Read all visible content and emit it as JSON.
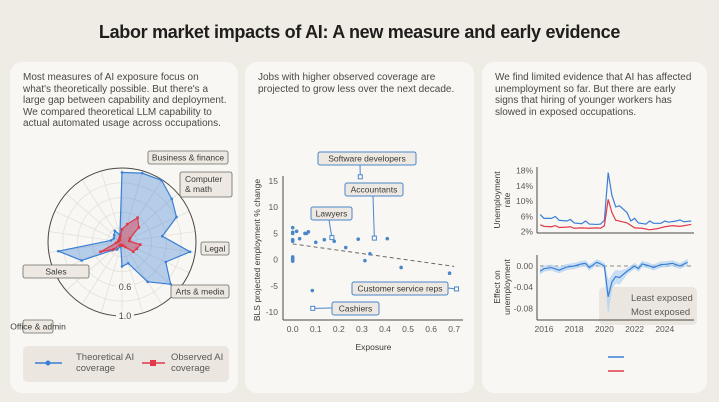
{
  "title": "Labor market impacts of AI: A new measure and early evidence",
  "panels": [
    {
      "text": "Most measures of AI exposure focus on what's theoretically possible. But there's a large gap between capability and deployment. We compared theoretical LLM capability to actual automated usage across occupations."
    },
    {
      "text": "Jobs with higher observed coverage are projected to grow less over the next decade."
    },
    {
      "text": "We find limited evidence that AI has affected unemployment so far. But there are early signs that hiring of younger workers has slowed in exposed occupations."
    }
  ],
  "chart_data": [
    {
      "type": "radar",
      "rlim": [
        0,
        1
      ],
      "ring_labels": [
        "0.6",
        "1.0"
      ],
      "category_labels": [
        "Business & finance",
        "Computer & math",
        "Legal",
        "Arts & media",
        "Sales",
        "Office & admin"
      ],
      "series": [
        {
          "name": "Theoretical AI coverage",
          "color": "#3a7fd5",
          "values": [
            0.94,
            0.97,
            0.99,
            0.89,
            0.81,
            0.55,
            0.93,
            0.65,
            0.87,
            0.64,
            0.3,
            0.33,
            0.06,
            0.12,
            0.17,
            0.6,
            0.87,
            0.15,
            0.12,
            0.14,
            0.18,
            0.1
          ]
        },
        {
          "name": "Observed AI coverage",
          "color": "#e0394a",
          "values": [
            0.17,
            0.25,
            0.39,
            0.3,
            0.12,
            0.1,
            0.25,
            0.22,
            0.2,
            0.08,
            0.05,
            0.05,
            0.04,
            0.05,
            0.15,
            0.32,
            0.08,
            0.05,
            0.05,
            0.04,
            0.06,
            0.08
          ]
        }
      ],
      "legend": [
        "Theoretical AI coverage",
        "Observed AI coverage"
      ]
    },
    {
      "type": "scatter",
      "xlabel": "Exposure",
      "ylabel": "BLS projected employment % change",
      "xlim": [
        0,
        0.7
      ],
      "ylim": [
        -10,
        15
      ],
      "xticks": [
        "0.0",
        "0.1",
        "0.2",
        "0.3",
        "0.4",
        "0.5",
        "0.6",
        "0.7"
      ],
      "yticks": [
        "15",
        "10",
        "5",
        "0",
        "-5",
        "-10"
      ],
      "points": [
        [
          0,
          6.1
        ],
        [
          0,
          5.2
        ],
        [
          0,
          5
        ],
        [
          0.017,
          5.4
        ],
        [
          0,
          3.8
        ],
        [
          0,
          3.5
        ],
        [
          0.03,
          4
        ],
        [
          0.053,
          5
        ],
        [
          0.06,
          5
        ],
        [
          0.068,
          5.3
        ],
        [
          0,
          0.5
        ],
        [
          0,
          0.2
        ],
        [
          0,
          0
        ],
        [
          0,
          -0.3
        ],
        [
          0.1,
          3.3
        ],
        [
          0.137,
          3.8
        ],
        [
          0.18,
          3.5
        ],
        [
          0.23,
          2.3
        ],
        [
          0.284,
          3.9
        ],
        [
          0.335,
          1.1
        ],
        [
          0.313,
          -0.2
        ],
        [
          0.41,
          4
        ],
        [
          0.47,
          -1.5
        ],
        [
          0.68,
          -2.6
        ],
        [
          0.085,
          -5.9
        ]
      ],
      "labeled": [
        {
          "label": "Software developers",
          "x": 0.293,
          "y": 15.8
        },
        {
          "label": "Accountants",
          "x": 0.354,
          "y": 4.1
        },
        {
          "label": "Lawyers",
          "x": 0.17,
          "y": 4.2
        },
        {
          "label": "Customer service reps",
          "x": 0.71,
          "y": -5.6
        },
        {
          "label": "Cashiers",
          "x": 0.087,
          "y": -9.3
        }
      ],
      "trend": [
        [
          0,
          3.0
        ],
        [
          0.7,
          -1.3
        ]
      ],
      "color": "#4a86c9"
    },
    {
      "type": "line",
      "ylabel": "Unemployment rate",
      "ylim": [
        2,
        18
      ],
      "yticks": [
        "18%",
        "14%",
        "10%",
        "6%",
        "2%"
      ],
      "series": [
        {
          "name": "Least exposed",
          "color": "#3a7fd5",
          "points": [
            [
              2015.75,
              6.5
            ],
            [
              2016,
              5.5
            ],
            [
              2016.5,
              5.5
            ],
            [
              2016.75,
              6
            ],
            [
              2017,
              5
            ],
            [
              2017.5,
              4.8
            ],
            [
              2017.75,
              5.2
            ],
            [
              2018,
              4.3
            ],
            [
              2018.5,
              4.1
            ],
            [
              2018.75,
              4.8
            ],
            [
              2019,
              4
            ],
            [
              2019.5,
              3.9
            ],
            [
              2019.75,
              4
            ],
            [
              2020,
              5
            ],
            [
              2020.25,
              17.5
            ],
            [
              2020.5,
              11.5
            ],
            [
              2020.75,
              8.5
            ],
            [
              2021,
              8.8
            ],
            [
              2021.5,
              7
            ],
            [
              2021.75,
              4.8
            ],
            [
              2022,
              5.5
            ],
            [
              2022.25,
              4.3
            ],
            [
              2022.75,
              4
            ],
            [
              2023,
              4.8
            ],
            [
              2023.25,
              4.2
            ],
            [
              2023.75,
              4.2
            ],
            [
              2024,
              4.8
            ],
            [
              2024.25,
              4.5
            ],
            [
              2024.75,
              4.8
            ],
            [
              2025,
              5.1
            ],
            [
              2025.25,
              4.6
            ],
            [
              2025.75,
              4.8
            ]
          ]
        },
        {
          "name": "Most exposed",
          "color": "#e0394a",
          "points": [
            [
              2015.75,
              3.8
            ],
            [
              2016,
              3.4
            ],
            [
              2016.5,
              3.3
            ],
            [
              2016.75,
              3.6
            ],
            [
              2017,
              3.1
            ],
            [
              2017.5,
              3.2
            ],
            [
              2017.75,
              3.3
            ],
            [
              2018,
              2.9
            ],
            [
              2018.5,
              3
            ],
            [
              2019,
              2.9
            ],
            [
              2019.5,
              3
            ],
            [
              2019.75,
              2.9
            ],
            [
              2020,
              3.6
            ],
            [
              2020.25,
              10.5
            ],
            [
              2020.5,
              7
            ],
            [
              2020.75,
              5
            ],
            [
              2021,
              4.8
            ],
            [
              2021.5,
              4.3
            ],
            [
              2022,
              3
            ],
            [
              2022.5,
              2.9
            ],
            [
              2023,
              2.5
            ],
            [
              2023.5,
              2.8
            ],
            [
              2024,
              3.3
            ],
            [
              2024.5,
              3.6
            ],
            [
              2025,
              3.4
            ],
            [
              2025.75,
              3.9
            ]
          ]
        }
      ]
    },
    {
      "type": "line",
      "ylabel": "Effect on unemployment",
      "ylim": [
        -0.09,
        0.015
      ],
      "yticks": [
        "0.00",
        "-0.04",
        "-0.08"
      ],
      "xticks": [
        "2016",
        "2018",
        "2020",
        "2022",
        "2024"
      ],
      "series": [
        {
          "name": "Effect",
          "color": "#3a7fd5",
          "points": [
            [
              2015.75,
              -0.01
            ],
            [
              2016,
              -0.005
            ],
            [
              2016.5,
              -0.003
            ],
            [
              2017,
              -0.008
            ],
            [
              2017.5,
              -0.002
            ],
            [
              2018,
              0
            ],
            [
              2018.5,
              0.004
            ],
            [
              2018.75,
              0.005
            ],
            [
              2019,
              -0.003
            ],
            [
              2019.5,
              0.007
            ],
            [
              2019.75,
              0.004
            ],
            [
              2020,
              0
            ],
            [
              2020.25,
              -0.058
            ],
            [
              2020.5,
              -0.03
            ],
            [
              2020.75,
              -0.02
            ],
            [
              2021,
              -0.022
            ],
            [
              2021.5,
              -0.01
            ],
            [
              2022,
              0
            ],
            [
              2022.25,
              -0.005
            ],
            [
              2022.5,
              0.004
            ],
            [
              2023,
              0
            ],
            [
              2023.25,
              -0.003
            ],
            [
              2023.75,
              0.003
            ],
            [
              2024,
              0.003
            ],
            [
              2024.5,
              0.005
            ],
            [
              2025,
              0
            ],
            [
              2025.5,
              0.007
            ]
          ]
        }
      ],
      "legend": [
        "Least exposed",
        "Most exposed"
      ]
    }
  ]
}
